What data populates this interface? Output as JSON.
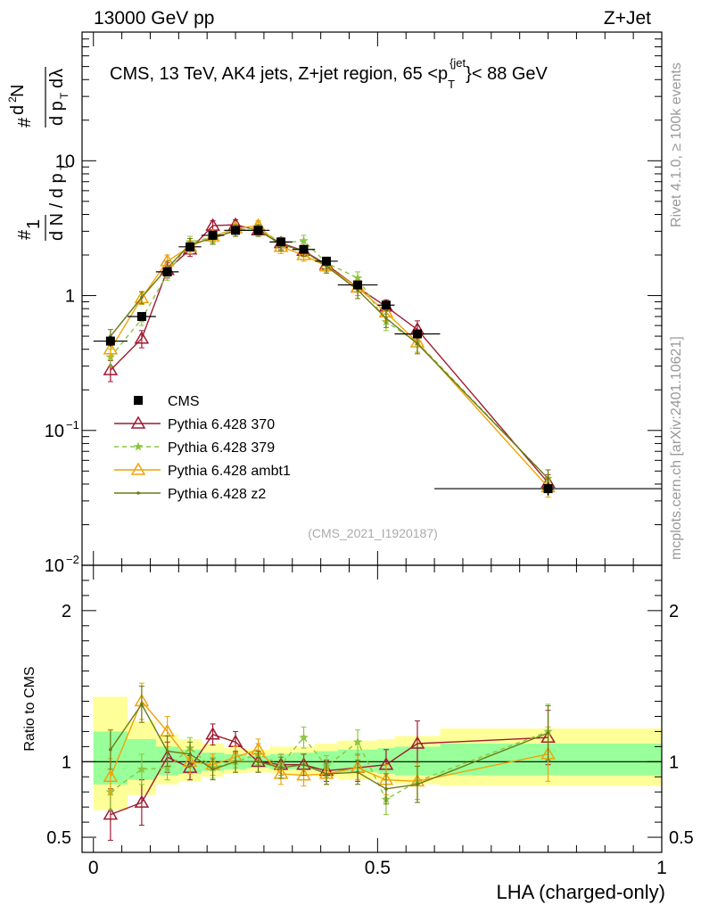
{
  "header": {
    "left": "13000 GeV pp",
    "right": "Z+Jet"
  },
  "side": {
    "rivet": "Rivet 4.1.0, ≥ 100k events",
    "mcplots": "mcplots.cern.ch [arXiv:2401.10621]"
  },
  "colors": {
    "cms": "#000000",
    "p370": "#9e1b32",
    "p379": "#8cc63f",
    "ambt1": "#f0a30a",
    "z2": "#6b7a14",
    "band_outer": "#ffff99",
    "band_inner": "#99ff99"
  },
  "chart_data": [
    {
      "type": "line",
      "title": "CMS, 13 TeV, AK4 jets, Z+jet region, 65 <p_T^{jet}< 88 GeV",
      "ylabel": "1/(dN/dp_T) d²N/(dp_T dλ)",
      "yscale": "log",
      "ylim": [
        0.01,
        90
      ],
      "xlim": [
        -0.02,
        1.0
      ],
      "yticks": [
        {
          "v": 0.01,
          "base": "10",
          "exp": "−2"
        },
        {
          "v": 0.1,
          "base": "10",
          "exp": "−1"
        },
        {
          "v": 1,
          "base": "1",
          "exp": ""
        },
        {
          "v": 10,
          "base": "10",
          "exp": ""
        }
      ],
      "watermark": "(CMS_2021_I1920187)",
      "x": [
        0.03,
        0.085,
        0.13,
        0.17,
        0.21,
        0.25,
        0.29,
        0.33,
        0.37,
        0.41,
        0.465,
        0.515,
        0.57,
        0.8
      ],
      "xerr": [
        0.03,
        0.025,
        0.02,
        0.02,
        0.02,
        0.02,
        0.02,
        0.02,
        0.02,
        0.02,
        0.035,
        0.015,
        0.04,
        0.2
      ],
      "series": [
        {
          "name": "CMS",
          "key": "cms",
          "marker": "square",
          "values": [
            0.46,
            0.7,
            1.5,
            2.3,
            2.8,
            3.05,
            3.05,
            2.5,
            2.2,
            1.8,
            1.2,
            0.85,
            0.52,
            0.037
          ],
          "err": [
            0.04,
            0.05,
            0.1,
            0.15,
            0.15,
            0.15,
            0.15,
            0.12,
            0.1,
            0.09,
            0.07,
            0.05,
            0.04,
            0.004
          ]
        },
        {
          "name": "Pythia 6.428 370",
          "key": "p370",
          "marker": "triangle",
          "values": [
            0.28,
            0.48,
            1.55,
            2.2,
            3.3,
            3.35,
            3.05,
            2.45,
            2.15,
            1.7,
            1.15,
            0.83,
            0.56,
            0.041
          ],
          "err": [
            0.05,
            0.07,
            0.2,
            0.25,
            0.3,
            0.3,
            0.3,
            0.25,
            0.2,
            0.18,
            0.15,
            0.1,
            0.09,
            0.006
          ]
        },
        {
          "name": "Pythia 6.428 379",
          "key": "p379",
          "marker": "star",
          "dashed": true,
          "values": [
            0.35,
            0.67,
            1.45,
            2.5,
            2.7,
            3.05,
            3.2,
            2.45,
            2.55,
            1.75,
            1.35,
            0.64,
            0.45,
            0.044
          ],
          "err": [
            0.05,
            0.07,
            0.15,
            0.25,
            0.25,
            0.3,
            0.3,
            0.25,
            0.25,
            0.18,
            0.15,
            0.09,
            0.07,
            0.007
          ]
        },
        {
          "name": "Pythia 6.428 ambt1",
          "key": "ambt1",
          "marker": "triangle",
          "values": [
            0.4,
            0.96,
            1.8,
            2.3,
            2.75,
            3.15,
            3.3,
            2.3,
            2.0,
            1.65,
            1.15,
            0.75,
            0.45,
            0.038
          ],
          "err": [
            0.05,
            0.1,
            0.2,
            0.25,
            0.25,
            0.3,
            0.3,
            0.25,
            0.2,
            0.18,
            0.15,
            0.1,
            0.07,
            0.006
          ]
        },
        {
          "name": "Pythia 6.428 z2",
          "key": "z2",
          "marker": "dot",
          "values": [
            0.5,
            0.97,
            1.6,
            2.4,
            2.65,
            3.05,
            3.05,
            2.4,
            2.15,
            1.65,
            1.1,
            0.68,
            0.44,
            0.044
          ],
          "err": [
            0.06,
            0.1,
            0.2,
            0.25,
            0.25,
            0.3,
            0.3,
            0.25,
            0.2,
            0.18,
            0.15,
            0.1,
            0.07,
            0.007
          ]
        }
      ]
    },
    {
      "type": "line",
      "xlabel": "LHA (charged-only)",
      "ylabel": "Ratio to CMS",
      "ylim": [
        0.4,
        2.3
      ],
      "xlim": [
        -0.02,
        1.0
      ],
      "yticks": [
        0.5,
        1,
        2
      ],
      "ytick_labels": [
        "0.5",
        "1",
        "2"
      ],
      "xticks": [
        0,
        0.5,
        1
      ],
      "xtick_labels": [
        "0",
        "0.5",
        "1"
      ],
      "band_edges": [
        0.0,
        0.06,
        0.11,
        0.15,
        0.19,
        0.23,
        0.27,
        0.31,
        0.35,
        0.39,
        0.43,
        0.5,
        0.53,
        0.61,
        1.0
      ],
      "band_outer": [
        [
          0.68,
          1.43
        ],
        [
          0.78,
          1.27
        ],
        [
          0.85,
          1.18
        ],
        [
          0.87,
          1.15
        ],
        [
          0.9,
          1.12
        ],
        [
          0.92,
          1.09
        ],
        [
          0.93,
          1.08
        ],
        [
          0.92,
          1.1
        ],
        [
          0.91,
          1.1
        ],
        [
          0.9,
          1.12
        ],
        [
          0.88,
          1.14
        ],
        [
          0.87,
          1.15
        ],
        [
          0.85,
          1.17
        ],
        [
          0.84,
          1.22
        ]
      ],
      "band_inner": [
        [
          0.85,
          1.2
        ],
        [
          0.88,
          1.15
        ],
        [
          0.91,
          1.1
        ],
        [
          0.92,
          1.08
        ],
        [
          0.94,
          1.06
        ],
        [
          0.95,
          1.05
        ],
        [
          0.96,
          1.04
        ],
        [
          0.95,
          1.05
        ],
        [
          0.95,
          1.06
        ],
        [
          0.94,
          1.07
        ],
        [
          0.93,
          1.08
        ],
        [
          0.92,
          1.09
        ],
        [
          0.91,
          1.1
        ],
        [
          0.91,
          1.12
        ]
      ],
      "series": [
        {
          "name": "Pythia 6.428 370",
          "key": "p370",
          "marker": "triangle",
          "values": [
            0.65,
            0.73,
            1.03,
            0.96,
            1.18,
            1.13,
            1.0,
            0.98,
            0.98,
            0.94,
            0.96,
            0.98,
            1.12,
            1.16
          ],
          "err": [
            0.17,
            0.15,
            0.1,
            0.08,
            0.07,
            0.07,
            0.07,
            0.07,
            0.07,
            0.07,
            0.09,
            0.1,
            0.15,
            0.18
          ]
        },
        {
          "name": "Pythia 6.428 379",
          "key": "p379",
          "marker": "star",
          "dashed": true,
          "values": [
            0.8,
            0.95,
            0.96,
            1.09,
            0.96,
            1.0,
            1.05,
            0.98,
            1.16,
            0.97,
            1.13,
            0.75,
            0.87,
            1.2
          ],
          "err": [
            0.12,
            0.1,
            0.08,
            0.07,
            0.07,
            0.07,
            0.07,
            0.07,
            0.07,
            0.07,
            0.08,
            0.1,
            0.12,
            0.18
          ]
        },
        {
          "name": "Pythia 6.428 ambt1",
          "key": "ambt1",
          "marker": "triangle",
          "values": [
            0.9,
            1.4,
            1.2,
            1.0,
            0.98,
            1.03,
            1.08,
            0.92,
            0.91,
            0.92,
            0.96,
            0.88,
            0.87,
            1.05
          ],
          "err": [
            0.12,
            0.12,
            0.1,
            0.08,
            0.07,
            0.07,
            0.07,
            0.07,
            0.07,
            0.07,
            0.08,
            0.1,
            0.12,
            0.18
          ]
        },
        {
          "name": "Pythia 6.428 z2",
          "key": "z2",
          "marker": "dot",
          "values": [
            1.08,
            1.38,
            1.07,
            1.05,
            0.95,
            1.0,
            1.0,
            0.96,
            0.98,
            0.92,
            0.93,
            0.82,
            0.85,
            1.19
          ],
          "err": [
            0.13,
            0.12,
            0.1,
            0.08,
            0.07,
            0.07,
            0.07,
            0.07,
            0.07,
            0.07,
            0.08,
            0.1,
            0.12,
            0.18
          ]
        }
      ]
    }
  ]
}
